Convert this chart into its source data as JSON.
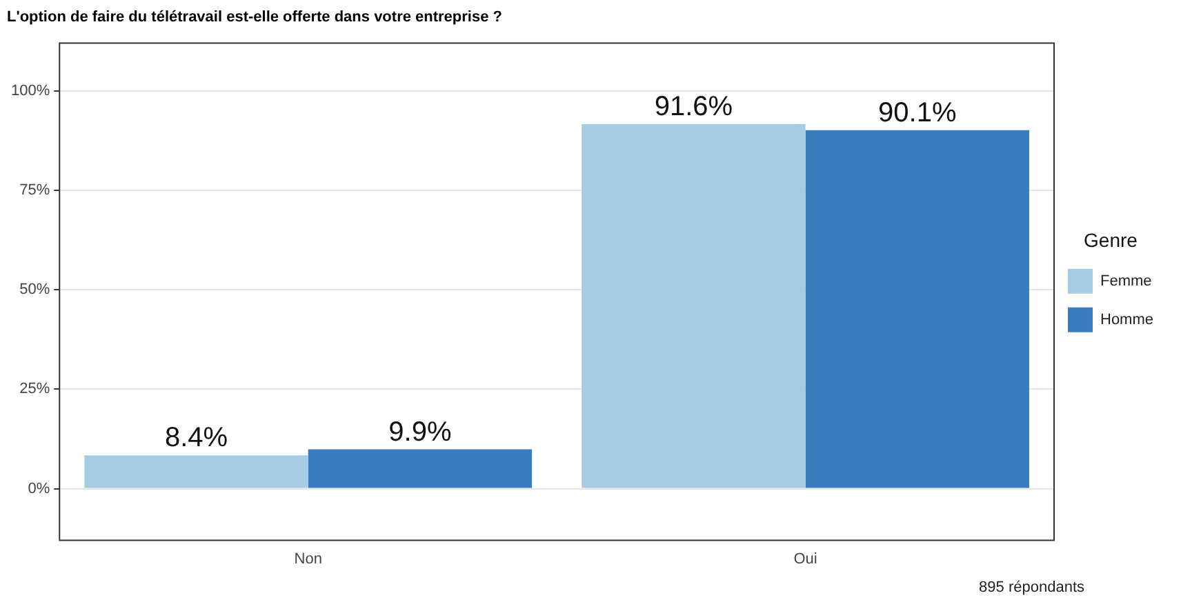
{
  "chart_data": {
    "type": "bar",
    "title": "L'option de faire du télétravail est-elle offerte dans votre entreprise ?",
    "categories": [
      "Non",
      "Oui"
    ],
    "series": [
      {
        "name": "Femme",
        "color": "#a6cbe3",
        "values": [
          8.4,
          91.6
        ],
        "value_labels": [
          "8.4%",
          "91.6%"
        ]
      },
      {
        "name": "Homme",
        "color": "#3a7dbd",
        "values": [
          9.9,
          90.1
        ],
        "value_labels": [
          "9.9%",
          "90.1%"
        ]
      }
    ],
    "ylim": [
      -13,
      112
    ],
    "yticks": [
      {
        "value": 0,
        "label": "0%"
      },
      {
        "value": 25,
        "label": "25%"
      },
      {
        "value": 50,
        "label": "50%"
      },
      {
        "value": 75,
        "label": "75%"
      },
      {
        "value": 100,
        "label": "100%"
      }
    ],
    "grid": "y",
    "legend": "right",
    "legend_title": "Genre",
    "annotations": [
      "895 répondants"
    ]
  }
}
